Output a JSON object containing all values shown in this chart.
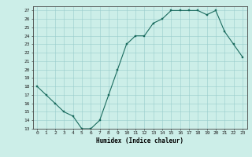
{
  "x": [
    0,
    1,
    2,
    3,
    4,
    5,
    6,
    7,
    8,
    9,
    10,
    11,
    12,
    13,
    14,
    15,
    16,
    17,
    18,
    19,
    20,
    21,
    22,
    23
  ],
  "y": [
    18,
    17,
    16,
    15,
    14.5,
    13,
    13,
    14,
    17,
    20,
    23,
    24,
    24,
    25.5,
    26,
    27,
    27,
    27,
    27,
    26.5,
    27,
    24.5,
    23,
    21.5
  ],
  "xlabel": "Humidex (Indice chaleur)",
  "ylim": [
    13,
    27.5
  ],
  "xlim": [
    -0.5,
    23.5
  ],
  "yticks": [
    13,
    14,
    15,
    16,
    17,
    18,
    19,
    20,
    21,
    22,
    23,
    24,
    25,
    26,
    27
  ],
  "xticks": [
    0,
    1,
    2,
    3,
    4,
    5,
    6,
    7,
    8,
    9,
    10,
    11,
    12,
    13,
    14,
    15,
    16,
    17,
    18,
    19,
    20,
    21,
    22,
    23
  ],
  "line_color": "#1a6b5e",
  "marker_color": "#1a6b5e",
  "bg_color": "#cceee8",
  "grid_color": "#99cccc",
  "label_fontsize": 5.5,
  "tick_fontsize": 4.5
}
